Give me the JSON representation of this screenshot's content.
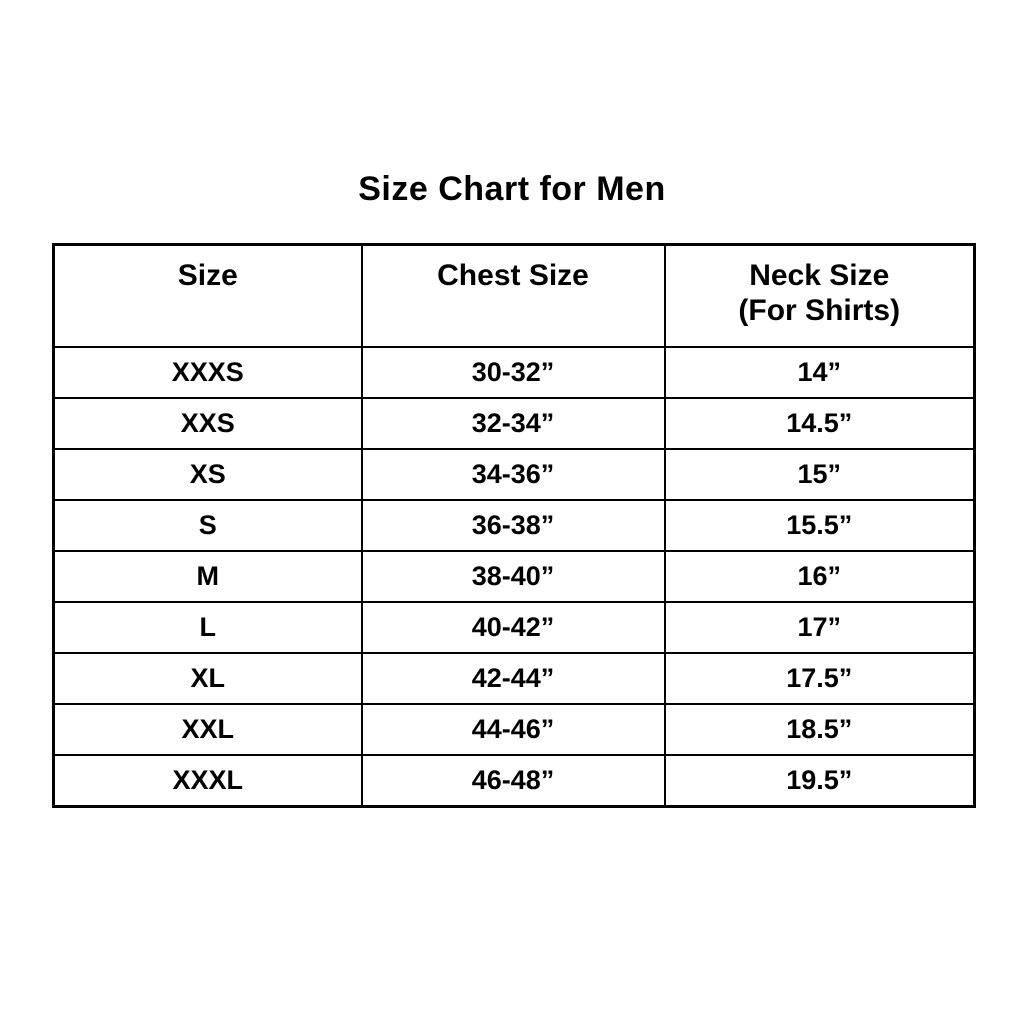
{
  "title": "Size Chart for Men",
  "colors": {
    "background": "#ffffff",
    "text": "#000000",
    "border": "#000000"
  },
  "table": {
    "headers": {
      "size": "Size",
      "chest": "Chest Size",
      "neck_line1": "Neck Size",
      "neck_line2": "(For Shirts)"
    },
    "rows": [
      {
        "size": "XXXS",
        "chest": "30-32”",
        "neck": "14”"
      },
      {
        "size": "XXS",
        "chest": "32-34”",
        "neck": "14.5”"
      },
      {
        "size": "XS",
        "chest": "34-36”",
        "neck": "15”"
      },
      {
        "size": "S",
        "chest": "36-38”",
        "neck": "15.5”"
      },
      {
        "size": "M",
        "chest": "38-40”",
        "neck": "16”"
      },
      {
        "size": "L",
        "chest": "40-42”",
        "neck": "17”"
      },
      {
        "size": "XL",
        "chest": "42-44”",
        "neck": "17.5”"
      },
      {
        "size": "XXL",
        "chest": "44-46”",
        "neck": "18.5”"
      },
      {
        "size": "XXXL",
        "chest": "46-48”",
        "neck": "19.5”"
      }
    ]
  },
  "chart_data": {
    "type": "table",
    "title": "Size Chart for Men",
    "columns": [
      "Size",
      "Chest Size",
      "Neck Size (For Shirts)"
    ],
    "rows": [
      [
        "XXXS",
        "30-32”",
        "14”"
      ],
      [
        "XXS",
        "32-34”",
        "14.5”"
      ],
      [
        "XS",
        "34-36”",
        "15”"
      ],
      [
        "S",
        "36-38”",
        "15.5”"
      ],
      [
        "M",
        "38-40”",
        "16”"
      ],
      [
        "L",
        "40-42”",
        "17”"
      ],
      [
        "XL",
        "42-44”",
        "17.5”"
      ],
      [
        "XXL",
        "44-46”",
        "18.5”"
      ],
      [
        "XXXL",
        "46-48”",
        "19.5”"
      ]
    ]
  }
}
